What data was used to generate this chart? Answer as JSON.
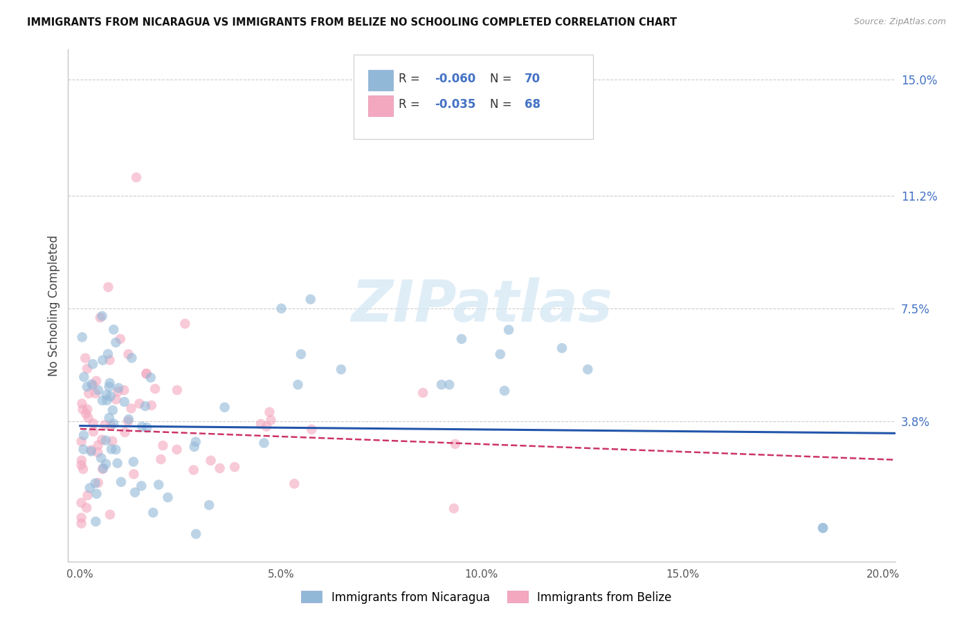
{
  "title": "IMMIGRANTS FROM NICARAGUA VS IMMIGRANTS FROM BELIZE NO SCHOOLING COMPLETED CORRELATION CHART",
  "source": "Source: ZipAtlas.com",
  "ylabel": "No Schooling Completed",
  "xlim_low": -0.003,
  "xlim_high": 0.203,
  "ylim_low": -0.008,
  "ylim_high": 0.16,
  "xticks": [
    0.0,
    0.05,
    0.1,
    0.15,
    0.2
  ],
  "xtick_labels": [
    "0.0%",
    "5.0%",
    "10.0%",
    "15.0%",
    "20.0%"
  ],
  "ytick_positions": [
    0.038,
    0.075,
    0.112,
    0.15
  ],
  "ytick_labels": [
    "3.8%",
    "7.5%",
    "11.2%",
    "15.0%"
  ],
  "nicaragua_color": "#92b8d8",
  "belize_color": "#f4a8bf",
  "nicaragua_line_color": "#2255aa",
  "belize_line_color": "#cc3366",
  "watermark": "ZIPatlas",
  "legend_label_nic": "Immigrants from Nicaragua",
  "legend_label_bel": "Immigrants from Belize",
  "nic_slope": -0.012,
  "nic_intercept": 0.0365,
  "bel_slope": -0.05,
  "bel_intercept": 0.0355
}
